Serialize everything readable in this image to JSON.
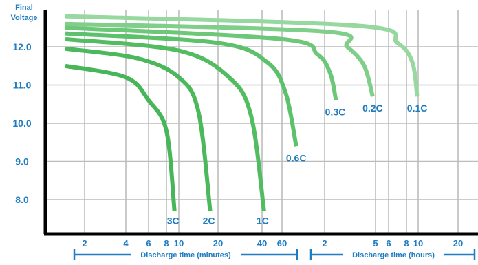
{
  "chart_data": {
    "type": "line",
    "ylabel": "Final Voltage",
    "ylim": [
      7.0,
      13.0
    ],
    "y_ticks": [
      "12.0",
      "11.0",
      "10.0",
      "9.0",
      "8.0"
    ],
    "x_ticks_minutes": [
      "2",
      "4",
      "6",
      "8",
      "10",
      "20",
      "40",
      "60"
    ],
    "x_ticks_hours": [
      "2",
      "5",
      "6",
      "8",
      "10",
      "20"
    ],
    "xlabel_minutes": "Discharge time (minutes)",
    "xlabel_hours": "Discharge time (hours)",
    "grid": true,
    "series": [
      {
        "name": "3C",
        "points": [
          [
            1,
            11.5
          ],
          [
            4,
            11.2
          ],
          [
            6,
            10.6
          ],
          [
            8,
            9.8
          ],
          [
            9.3,
            7.7
          ]
        ]
      },
      {
        "name": "2C",
        "points": [
          [
            1,
            11.95
          ],
          [
            5,
            11.7
          ],
          [
            10,
            11.2
          ],
          [
            15,
            10.3
          ],
          [
            18,
            7.7
          ]
        ]
      },
      {
        "name": "1C",
        "points": [
          [
            1,
            12.2
          ],
          [
            10,
            11.9
          ],
          [
            25,
            11.2
          ],
          [
            35,
            10.2
          ],
          [
            42,
            7.7
          ]
        ]
      },
      {
        "name": "0.6C",
        "points": [
          [
            1,
            12.35
          ],
          [
            20,
            12.1
          ],
          [
            45,
            11.6
          ],
          [
            65,
            10.8
          ],
          [
            80,
            9.4
          ]
        ]
      },
      {
        "name": "0.3C",
        "points": [
          [
            1,
            12.5
          ],
          [
            60,
            12.2
          ],
          [
            110,
            11.8
          ],
          [
            140,
            11.3
          ],
          [
            160,
            10.6
          ]
        ]
      },
      {
        "name": "0.2C",
        "points": [
          [
            1,
            12.6
          ],
          [
            120,
            12.4
          ],
          [
            200,
            12.0
          ],
          [
            260,
            11.5
          ],
          [
            290,
            10.7
          ]
        ]
      },
      {
        "name": "0.1C",
        "points": [
          [
            1,
            12.8
          ],
          [
            240,
            12.55
          ],
          [
            420,
            12.1
          ],
          [
            540,
            11.6
          ],
          [
            590,
            10.7
          ]
        ]
      }
    ]
  },
  "colors": {
    "axis": "#000000",
    "grid": "#bcbcbc",
    "label": "#1f7cc1",
    "series": [
      "#47b659",
      "#4cb85c",
      "#52bc61",
      "#5dc16b",
      "#6cc778",
      "#7fce89",
      "#96d89f"
    ]
  }
}
